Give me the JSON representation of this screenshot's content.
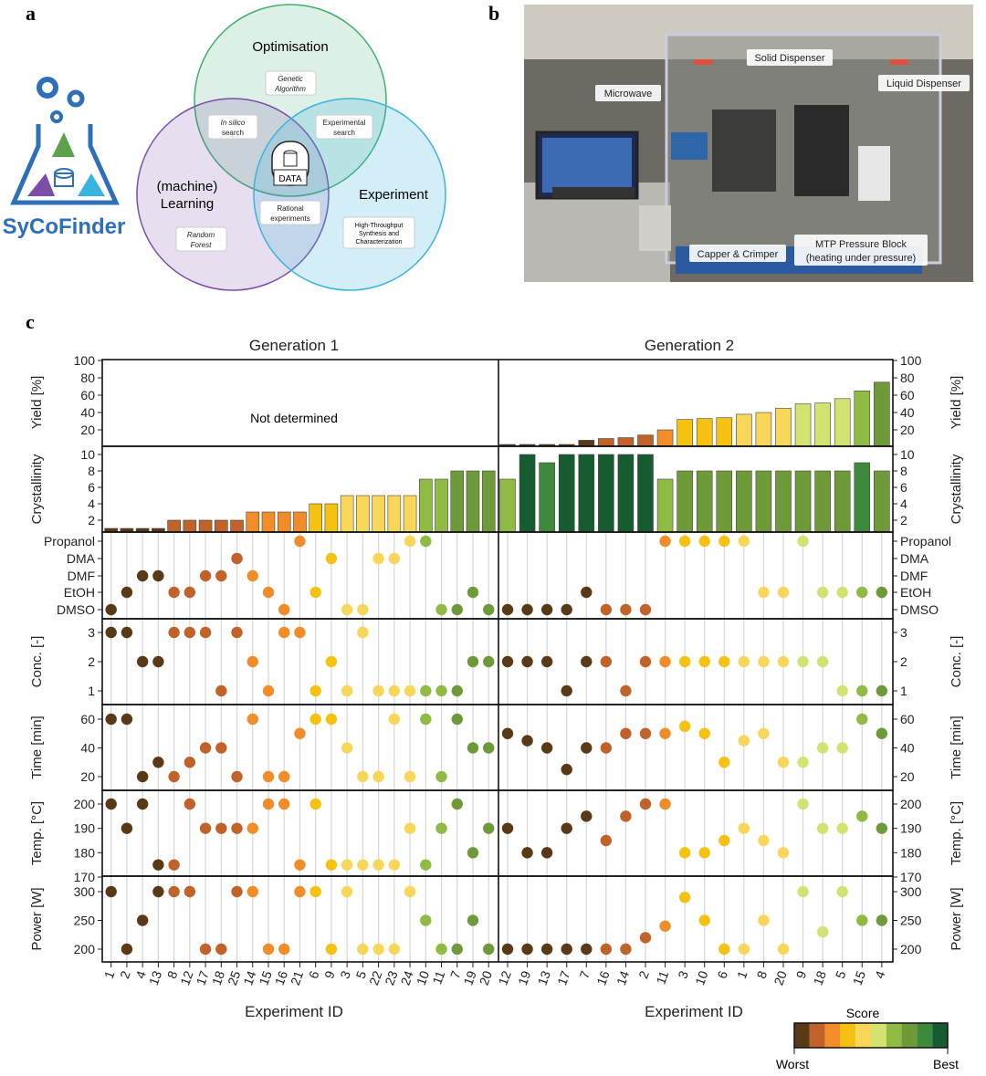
{
  "panel_labels": {
    "a": "a",
    "b": "b",
    "c": "c"
  },
  "panel_a": {
    "logo_text": "SyCoFinder",
    "circles": {
      "optimisation": "Optimisation",
      "learning_1": "(machine)",
      "learning_2": "Learning",
      "experiment": "Experiment"
    },
    "boxes": {
      "genetic_1": "Genetic",
      "genetic_2": "Algorithm",
      "insilico_1": "In silico",
      "insilico_2": "search",
      "expsearch_1": "Experimental",
      "expsearch_2": "search",
      "data": "DATA",
      "rational_1": "Rational",
      "rational_2": "experiments",
      "random_1": "Random",
      "random_2": "Forest",
      "hts_1": "High-Throughput",
      "hts_2": "Synthesis and",
      "hts_3": "Characterization"
    },
    "colors": {
      "optimisation": "#3fae6e",
      "learning": "#7b4fa8",
      "experiment": "#39b3e0",
      "logo": "#2e6fba"
    }
  },
  "panel_b": {
    "labels": {
      "solid": "Solid Dispenser",
      "liquid": "Liquid Dispenser",
      "microwave": "Microwave",
      "capper": "Capper & Crimper",
      "mtp_1": "MTP Pressure Block",
      "mtp_2": "(heating under pressure)"
    }
  },
  "chart_data": {
    "type": "bar+scatter",
    "generations": [
      {
        "title": "Generation 1",
        "xlabel": "Experiment ID",
        "yield_note": "Not determined",
        "ids": [
          "1",
          "2",
          "4",
          "13",
          "8",
          "12",
          "17",
          "18",
          "25",
          "14",
          "15",
          "16",
          "21",
          "6",
          "9",
          "3",
          "5",
          "22",
          "23",
          "24",
          "10",
          "11",
          "7",
          "19",
          "20"
        ],
        "yield": null,
        "crystallinity": [
          1,
          1,
          1,
          1,
          2,
          2,
          2,
          2,
          2,
          3,
          3,
          3,
          3,
          4,
          4,
          5,
          5,
          5,
          5,
          5,
          7,
          7,
          8,
          8,
          8
        ],
        "solvent": [
          "DMSO",
          "EtOH",
          "DMF",
          "DMF",
          "EtOH",
          "EtOH",
          "DMF",
          "DMF",
          "DMA",
          "DMF",
          "EtOH",
          "DMSO",
          "Propanol",
          "EtOH",
          "DMA",
          "DMSO",
          "DMSO",
          "DMA",
          "DMA",
          "Propanol",
          "Propanol",
          "DMSO",
          "DMSO",
          "EtOH",
          "DMSO"
        ],
        "conc": [
          3,
          3,
          2,
          2,
          3,
          3,
          3,
          1,
          3,
          2,
          1,
          3,
          3,
          1,
          2,
          1,
          3,
          1,
          1,
          1,
          1,
          1,
          1,
          2,
          2
        ],
        "time_min": [
          60,
          60,
          20,
          30,
          20,
          30,
          40,
          40,
          20,
          60,
          20,
          20,
          50,
          60,
          60,
          40,
          20,
          20,
          60,
          20,
          60,
          20,
          60,
          40,
          40
        ],
        "temp_c": [
          200,
          190,
          200,
          175,
          175,
          200,
          190,
          190,
          190,
          190,
          200,
          200,
          175,
          200,
          175,
          175,
          175,
          175,
          175,
          190,
          175,
          190,
          200,
          180,
          190
        ],
        "power_w": [
          300,
          200,
          250,
          300,
          300,
          300,
          200,
          200,
          300,
          300,
          200,
          200,
          300,
          300,
          200,
          300,
          200,
          200,
          200,
          300,
          250,
          200,
          200,
          250,
          200
        ],
        "score_index": [
          0,
          0,
          0,
          0,
          1,
          1,
          1,
          1,
          1,
          2,
          2,
          2,
          2,
          3,
          3,
          4,
          4,
          4,
          4,
          4,
          6,
          6,
          7,
          7,
          7
        ],
        "crystallinity_color_index": [
          0,
          0,
          0,
          0,
          1,
          1,
          1,
          1,
          1,
          2,
          2,
          2,
          2,
          3,
          3,
          4,
          4,
          4,
          4,
          4,
          6,
          6,
          7,
          7,
          7
        ]
      },
      {
        "title": "Generation 2",
        "xlabel": "Experiment ID",
        "ids": [
          "12",
          "19",
          "13",
          "17",
          "7",
          "16",
          "14",
          "2",
          "11",
          "3",
          "10",
          "6",
          "1",
          "8",
          "20",
          "9",
          "18",
          "5",
          "15",
          "4"
        ],
        "yield": [
          0,
          1,
          1,
          2,
          8,
          10,
          11,
          14,
          20,
          32,
          33,
          34,
          38,
          40,
          45,
          50,
          51,
          56,
          65,
          75
        ],
        "crystallinity": [
          7,
          10,
          9,
          10,
          10,
          10,
          10,
          10,
          7,
          8,
          8,
          8,
          8,
          8,
          8,
          8,
          8,
          8,
          9,
          8
        ],
        "solvent": [
          "DMSO",
          "DMSO",
          "DMSO",
          "DMSO",
          "EtOH",
          "DMSO",
          "DMSO",
          "DMSO",
          "Propanol",
          "Propanol",
          "Propanol",
          "Propanol",
          "Propanol",
          "EtOH",
          "EtOH",
          "Propanol",
          "EtOH",
          "EtOH",
          "EtOH",
          "EtOH"
        ],
        "conc": [
          2,
          2,
          2,
          1,
          2,
          2,
          1,
          2,
          2,
          2,
          2,
          2,
          2,
          2,
          2,
          2,
          2,
          1,
          1,
          1
        ],
        "time_min": [
          50,
          45,
          40,
          25,
          40,
          40,
          50,
          50,
          50,
          55,
          50,
          30,
          45,
          50,
          30,
          30,
          40,
          40,
          60,
          50
        ],
        "temp_c": [
          190,
          180,
          180,
          190,
          195,
          185,
          195,
          200,
          200,
          180,
          180,
          185,
          190,
          185,
          180,
          200,
          190,
          190,
          195,
          190
        ],
        "power_w": [
          200,
          200,
          200,
          200,
          200,
          200,
          200,
          220,
          240,
          290,
          250,
          200,
          200,
          250,
          200,
          300,
          230,
          300,
          250,
          250
        ],
        "score_index": [
          0,
          0,
          0,
          0,
          0,
          1,
          1,
          1,
          2,
          3,
          3,
          3,
          4,
          4,
          4,
          5,
          5,
          5,
          6,
          7
        ],
        "crystallinity_color_index": [
          6,
          9,
          8,
          9,
          9,
          9,
          9,
          9,
          6,
          7,
          7,
          7,
          7,
          7,
          7,
          7,
          7,
          7,
          8,
          7
        ]
      }
    ],
    "rows": {
      "yield": {
        "label": "Yield [%]",
        "ticks": [
          20,
          40,
          60,
          80,
          100
        ],
        "range": [
          0,
          100
        ]
      },
      "crystallinity": {
        "label": "Crystallinity",
        "ticks": [
          2,
          4,
          6,
          8,
          10
        ],
        "range": [
          0,
          10
        ]
      },
      "solvent": {
        "label": "",
        "categories": [
          "DMSO",
          "EtOH",
          "DMF",
          "DMA",
          "Propanol"
        ]
      },
      "conc": {
        "label": "Conc. [-]",
        "ticks": [
          1,
          2,
          3
        ]
      },
      "time": {
        "label": "Time [min]",
        "ticks": [
          20,
          40,
          60
        ]
      },
      "temp": {
        "label": "Temp. [°C]",
        "ticks": [
          170,
          180,
          190,
          200
        ]
      },
      "power": {
        "label": "Power [W]",
        "ticks": [
          200,
          250,
          300
        ]
      }
    },
    "colorbar": {
      "title": "Score",
      "low": "Worst",
      "high": "Best",
      "colors": [
        "#5a3a16",
        "#c0622a",
        "#f28c28",
        "#f5c211",
        "#f8d659",
        "#d4e271",
        "#8fbb45",
        "#6f9a3a",
        "#3e8a3c",
        "#165c30"
      ]
    },
    "grid": "vertical lines per experiment",
    "legend": "bottom-right"
  }
}
